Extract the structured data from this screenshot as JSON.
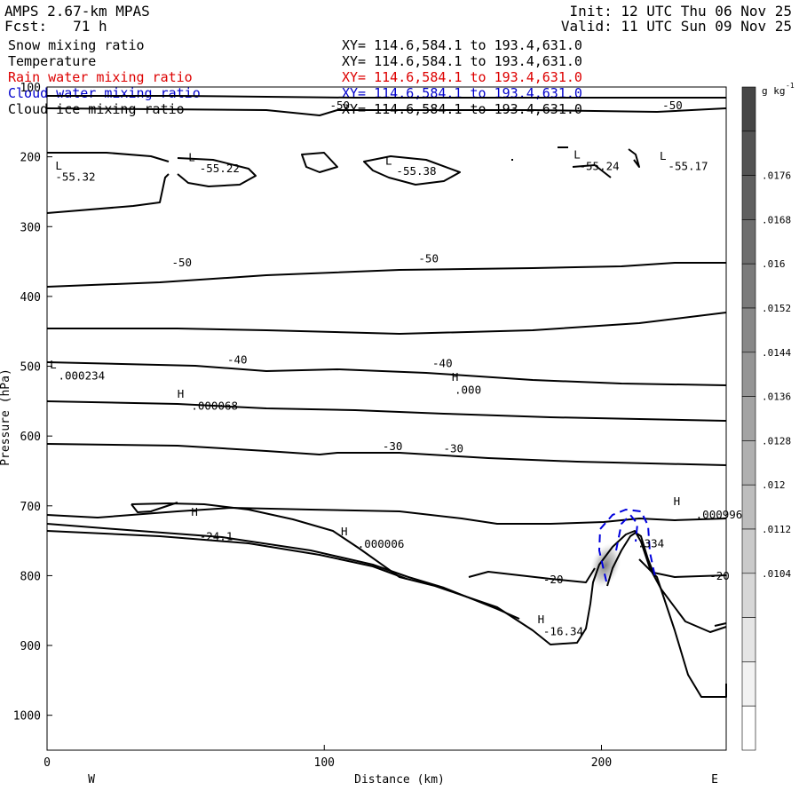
{
  "header": {
    "model": "AMPS 2.67-km MPAS",
    "init": "Init: 12 UTC Thu 06 Nov 25",
    "fcst_label": "Fcst:",
    "fcst_value": "71 h",
    "valid": "Valid: 11 UTC Sun 09 Nov 25"
  },
  "variables": [
    {
      "name": "Snow mixing ratio",
      "xy": "XY= 114.6,584.1 to 193.4,631.0",
      "color": "#000000"
    },
    {
      "name": "Temperature",
      "xy": "XY= 114.6,584.1 to 193.4,631.0",
      "color": "#000000"
    },
    {
      "name": "Rain water mixing ratio",
      "xy": "XY= 114.6,584.1 to 193.4,631.0",
      "color": "#dd0000"
    },
    {
      "name": "Cloud water mixing ratio",
      "xy": "XY= 114.6,584.1 to 193.4,631.0",
      "color": "#0000cc"
    },
    {
      "name": "Cloud ice mixing ratio",
      "xy": "XY= 114.6,584.1 to 193.4,631.0",
      "color": "#000000"
    }
  ],
  "chart_data": {
    "type": "contour_cross_section",
    "xlabel": "Distance (km)",
    "ylabel": "Pressure (hPa)",
    "xlim": [
      0,
      245
    ],
    "ylim": [
      1050,
      100
    ],
    "x_ticks": [
      "0",
      "100",
      "200"
    ],
    "y_ticks": [
      "100",
      "200",
      "300",
      "400",
      "500",
      "600",
      "700",
      "800",
      "900",
      "1000"
    ],
    "x_end_labels": {
      "left": "W",
      "right": "E"
    },
    "colorbar": {
      "unit_base": "g kg",
      "unit_exp": "-1",
      "ticks": [
        ".0176",
        ".0168",
        ".016",
        ".0152",
        ".0144",
        ".0136",
        ".0128",
        ".012",
        ".0112",
        ".0104"
      ],
      "levels": 15
    },
    "contour_labels": [
      {
        "text": "-50",
        "x": 102,
        "p": 127
      },
      {
        "text": "-50",
        "x": 222,
        "p": 127
      },
      {
        "text": "-50",
        "x": 45,
        "p": 352
      },
      {
        "text": "-50",
        "x": 134,
        "p": 346
      },
      {
        "text": "-40",
        "x": 65,
        "p": 491
      },
      {
        "text": "-40",
        "x": 139,
        "p": 496
      },
      {
        "text": "-30",
        "x": 121,
        "p": 615
      },
      {
        "text": "-30",
        "x": 143,
        "p": 618
      },
      {
        "text": "-24.1",
        "x": 55,
        "p": 744
      },
      {
        "text": "-20",
        "x": 179,
        "p": 806
      },
      {
        "text": "-20",
        "x": 239,
        "p": 801
      },
      {
        "text": "-16.34",
        "x": 179,
        "p": 880
      },
      {
        "text": "-55.32",
        "x": 3,
        "p": 229
      },
      {
        "text": "-55.22",
        "x": 55,
        "p": 217
      },
      {
        "text": "-55.38",
        "x": 126,
        "p": 221
      },
      {
        "text": "-55.24",
        "x": 192,
        "p": 214
      },
      {
        "text": "-55.17",
        "x": 224,
        "p": 214
      },
      {
        "text": ".000234",
        "x": 4,
        "p": 514
      },
      {
        "text": ".000",
        "x": 147,
        "p": 534
      },
      {
        "text": ".000068",
        "x": 52,
        "p": 557
      },
      {
        "text": ".000006",
        "x": 112,
        "p": 755
      },
      {
        "text": ".000996",
        "x": 234,
        "p": 713
      },
      {
        "text": ".334",
        "x": 213,
        "p": 754
      }
    ],
    "extrema_markers": [
      {
        "type": "L",
        "x": 3,
        "p": 213
      },
      {
        "type": "L",
        "x": 51,
        "p": 201
      },
      {
        "type": "L",
        "x": 122,
        "p": 206
      },
      {
        "type": "L",
        "x": 190,
        "p": 197
      },
      {
        "type": "L",
        "x": 221,
        "p": 199
      },
      {
        "type": "L",
        "x": 1,
        "p": 498
      },
      {
        "type": "H",
        "x": 146,
        "p": 516
      },
      {
        "type": "H",
        "x": 47,
        "p": 540
      },
      {
        "type": "H",
        "x": 52,
        "p": 709
      },
      {
        "type": "H",
        "x": 106,
        "p": 737
      },
      {
        "type": "H",
        "x": 226,
        "p": 694
      },
      {
        "type": "H",
        "x": 177,
        "p": 863
      }
    ]
  }
}
